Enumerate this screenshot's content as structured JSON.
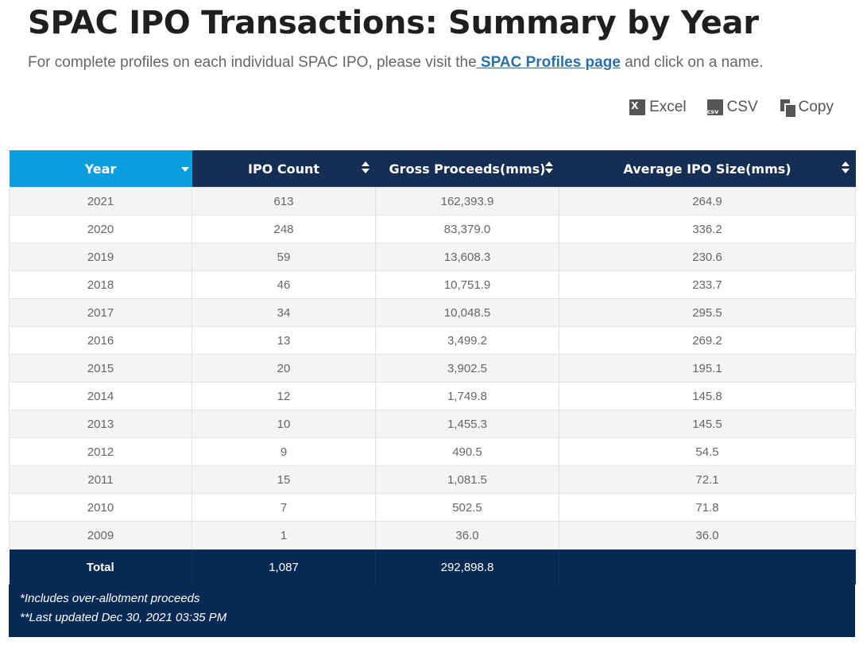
{
  "page": {
    "title": "SPAC IPO Transactions: Summary by Year",
    "subtitle_before": "For complete profiles on each individual SPAC IPO, please visit the",
    "subtitle_link": " SPAC Profiles page",
    "subtitle_after": " and click on a name."
  },
  "export": {
    "excel": "Excel",
    "csv": "CSV",
    "copy": "Copy"
  },
  "table": {
    "headers": [
      "Year",
      "IPO Count",
      "Gross Proceeds(mms)",
      "Average IPO Size(mms)"
    ],
    "rows": [
      [
        "2021",
        "613",
        "162,393.9",
        "264.9"
      ],
      [
        "2020",
        "248",
        "83,379.0",
        "336.2"
      ],
      [
        "2019",
        "59",
        "13,608.3",
        "230.6"
      ],
      [
        "2018",
        "46",
        "10,751.9",
        "233.7"
      ],
      [
        "2017",
        "34",
        "10,048.5",
        "295.5"
      ],
      [
        "2016",
        "13",
        "3,499.2",
        "269.2"
      ],
      [
        "2015",
        "20",
        "3,902.5",
        "195.1"
      ],
      [
        "2014",
        "12",
        "1,749.8",
        "145.8"
      ],
      [
        "2013",
        "10",
        "1,455.3",
        "145.5"
      ],
      [
        "2012",
        "9",
        "490.5",
        "54.5"
      ],
      [
        "2011",
        "15",
        "1,081.5",
        "72.1"
      ],
      [
        "2010",
        "7",
        "502.5",
        "71.8"
      ],
      [
        "2009",
        "1",
        "36.0",
        "36.0"
      ]
    ],
    "footer": {
      "label": "Total",
      "count": "1,087",
      "proceeds": "292,898.8",
      "avg": ""
    },
    "notes": [
      "*Includes over-allotment proceeds",
      "**Last updated Dec 30, 2021 03:35 PM"
    ]
  },
  "colors": {
    "header_active": "#0a9de0",
    "header": "#152e54",
    "footer": "#072a55",
    "link": "#2a6fa8"
  }
}
